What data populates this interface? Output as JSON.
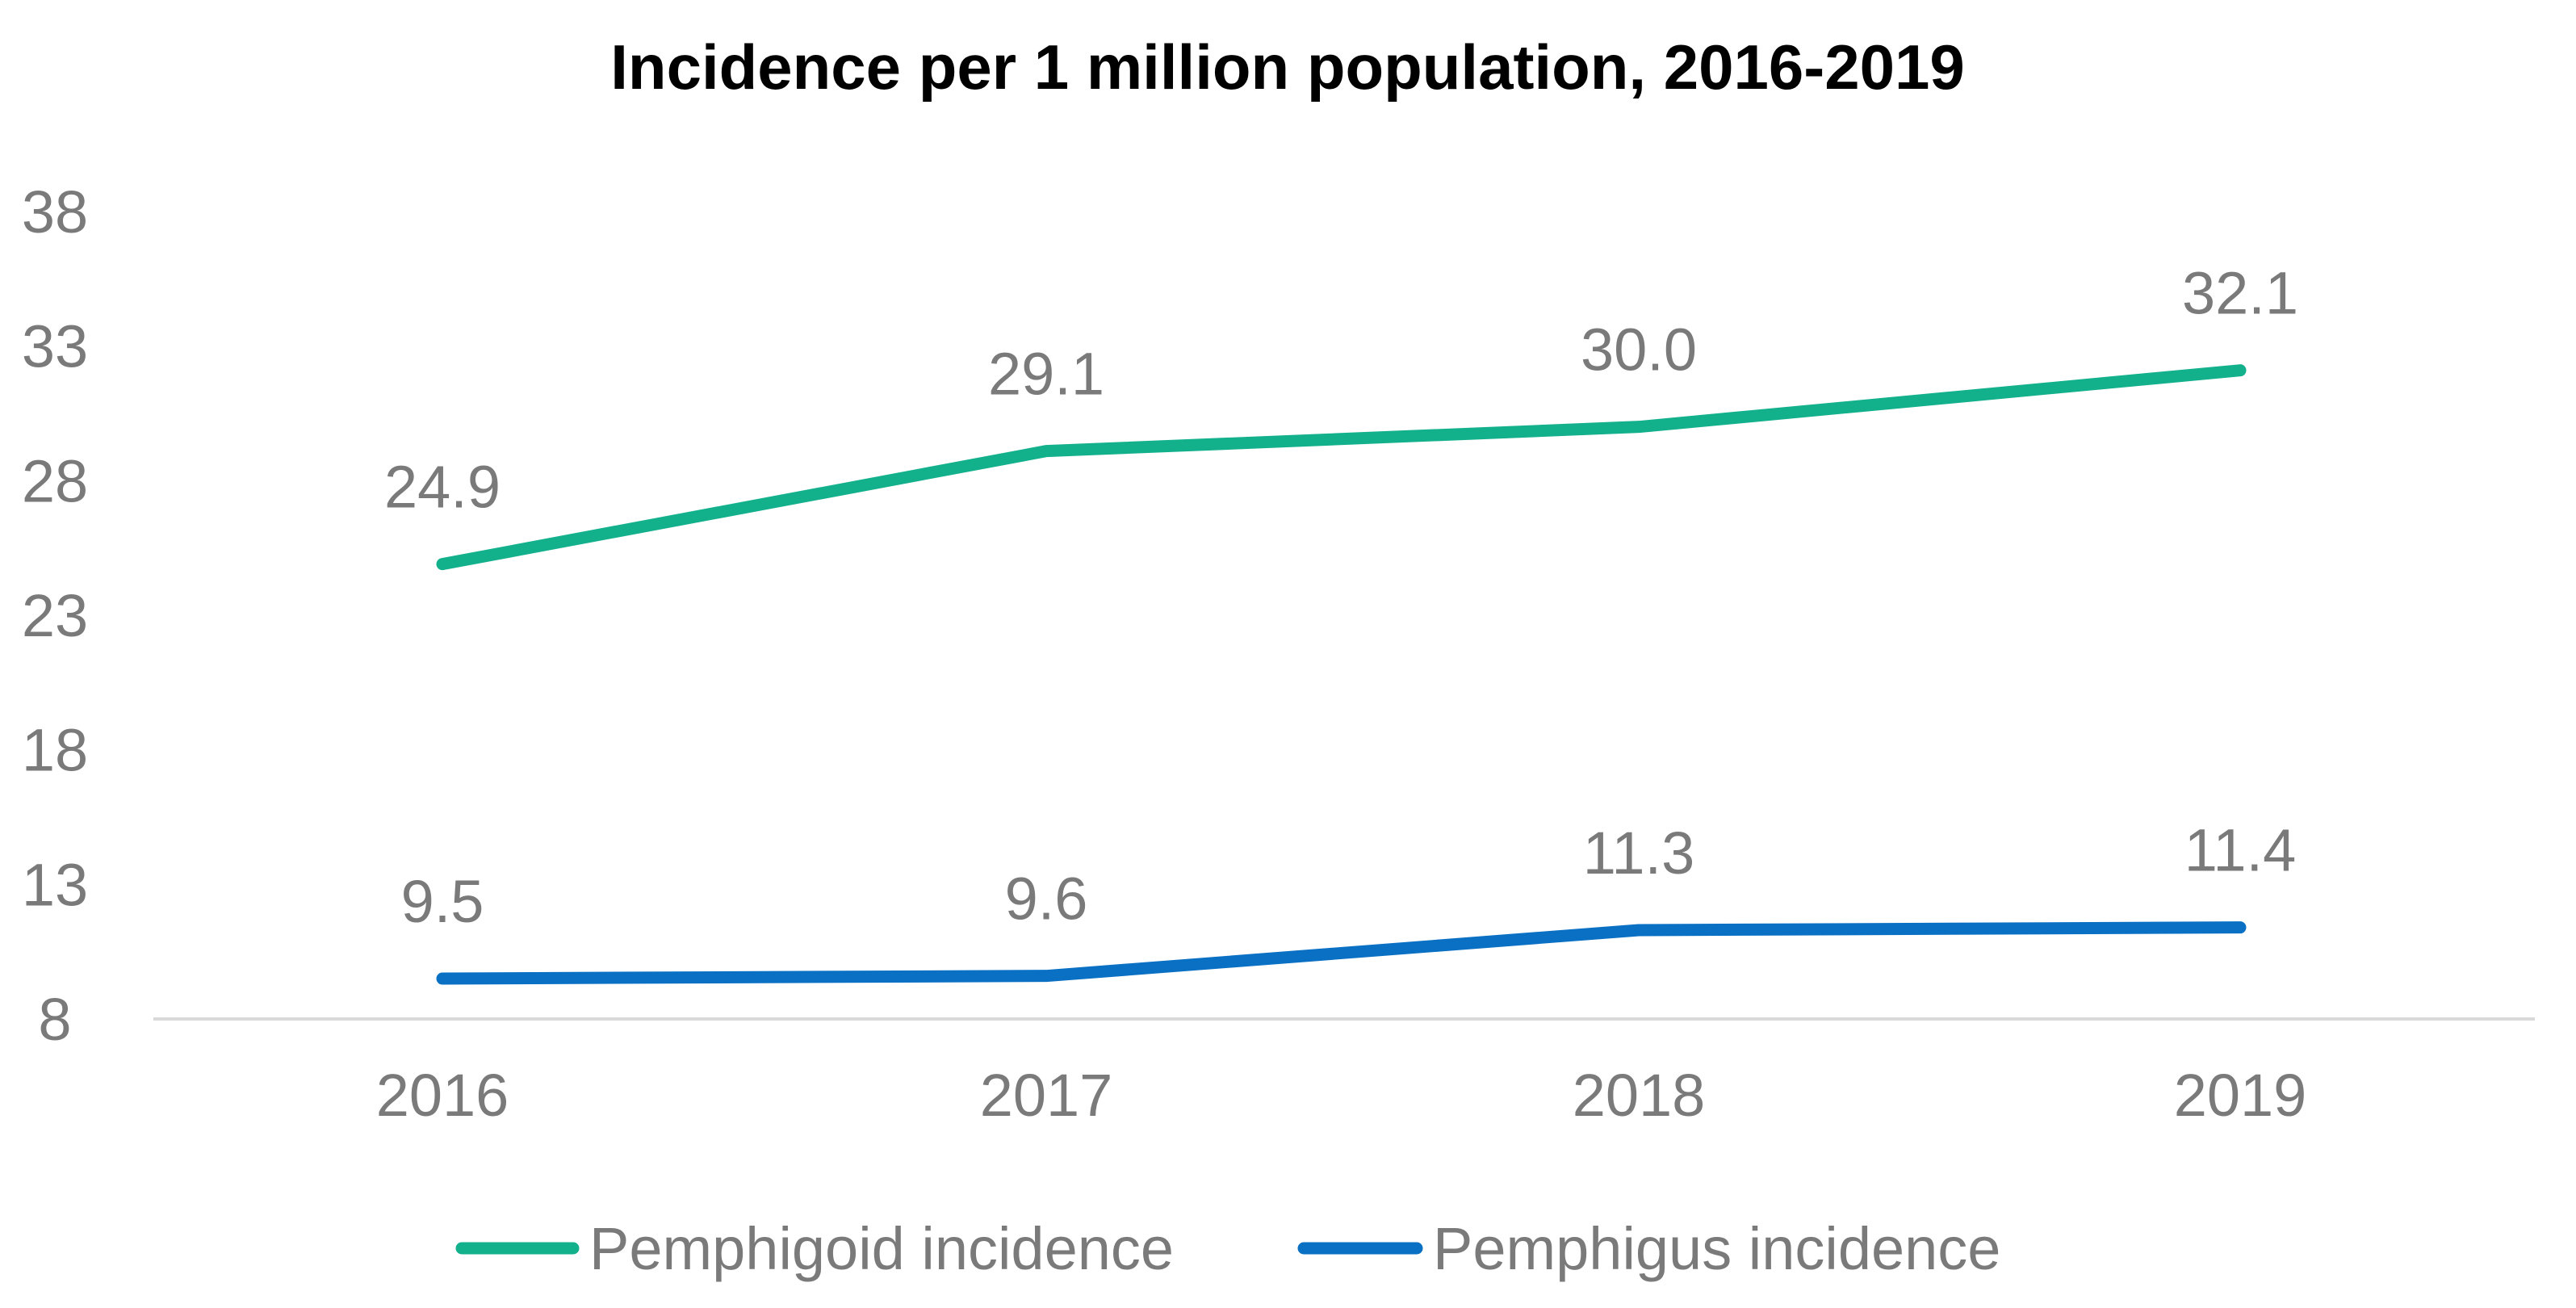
{
  "chart_data": {
    "type": "line",
    "title": "Incidence per 1 million population, 2016-2019",
    "xlabel": "",
    "ylabel": "",
    "categories": [
      "2016",
      "2017",
      "2018",
      "2019"
    ],
    "ylim": [
      8,
      38
    ],
    "yticks": [
      8,
      13,
      18,
      23,
      28,
      33,
      38
    ],
    "grid": false,
    "legend_position": "bottom",
    "series": [
      {
        "name": "Pemphigoid incidence",
        "color": "#13b08c",
        "values": [
          24.9,
          29.1,
          30.0,
          32.1
        ],
        "labels": [
          "24.9",
          "29.1",
          "30.0",
          "32.1"
        ]
      },
      {
        "name": "Pemphigus incidence",
        "color": "#0a70c4",
        "values": [
          9.5,
          9.6,
          11.3,
          11.4
        ],
        "labels": [
          "9.5",
          "9.6",
          "11.3",
          "11.4"
        ]
      }
    ]
  }
}
